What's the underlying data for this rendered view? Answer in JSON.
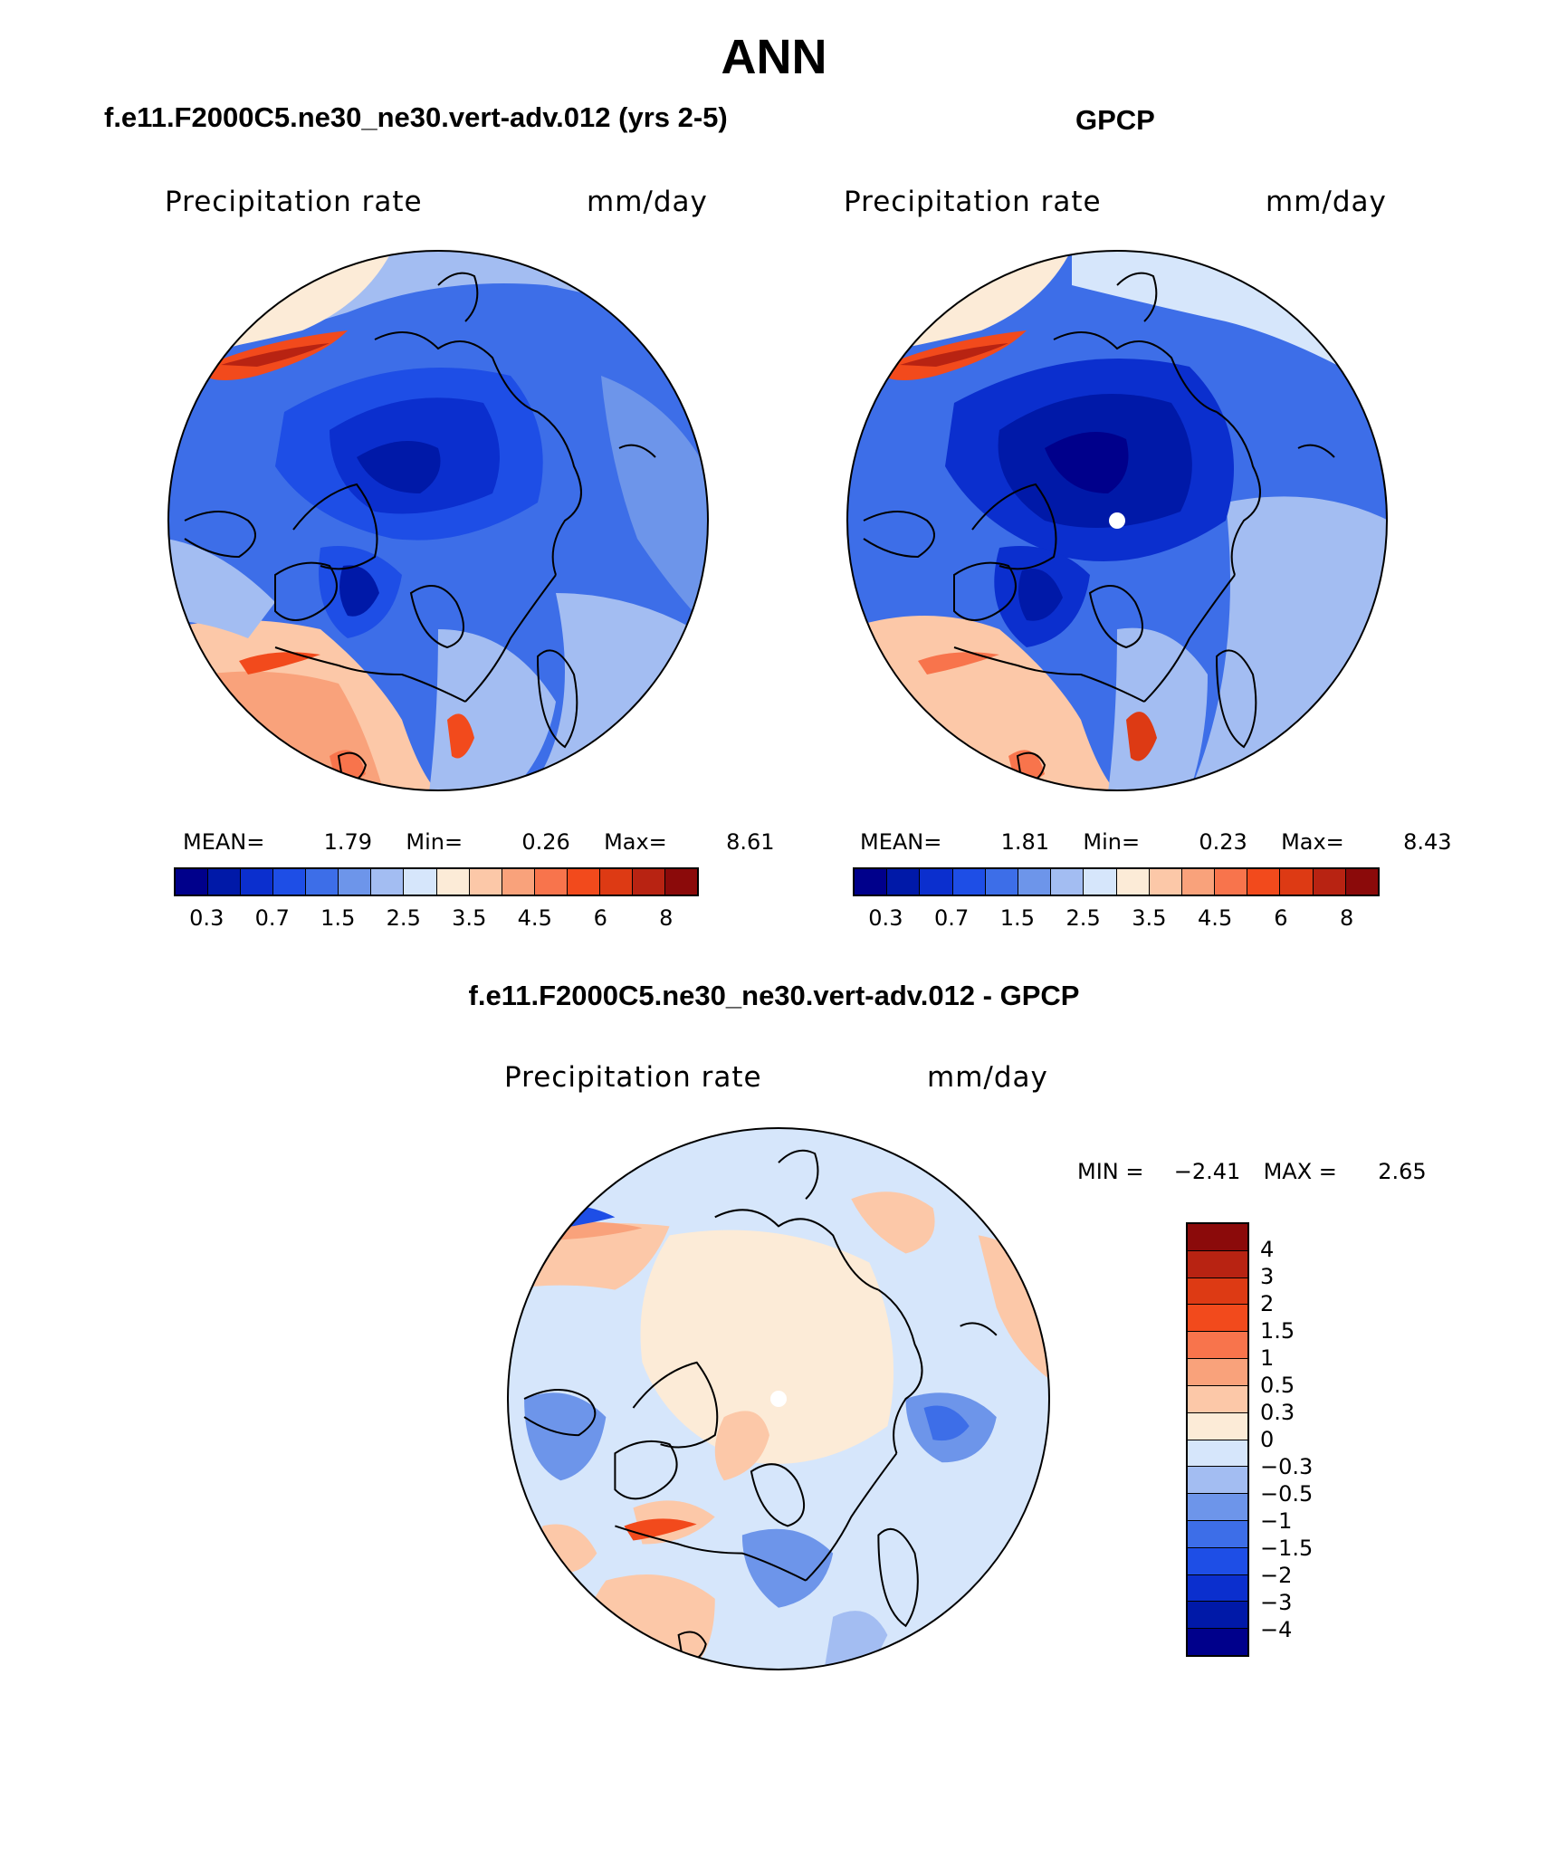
{
  "main_title": "ANN",
  "panels": [
    {
      "case_title": "f.e11.F2000C5.ne30_ne30.vert-adv.012 (yrs 2-5)",
      "variable": "Precipitation rate",
      "units": "mm/day",
      "mean_label": "MEAN=",
      "mean_value": "1.79",
      "min_label": "Min=",
      "min_value": "0.26",
      "max_label": "Max=",
      "max_value": "8.61"
    },
    {
      "case_title": "GPCP",
      "variable": "Precipitation rate",
      "units": "mm/day",
      "mean_label": "MEAN=",
      "mean_value": "1.81",
      "min_label": "Min=",
      "min_value": "0.23",
      "max_label": "Max=",
      "max_value": "8.43"
    }
  ],
  "diff_panel": {
    "case_title": "f.e11.F2000C5.ne30_ne30.vert-adv.012 - GPCP",
    "variable": "Precipitation rate",
    "units": "mm/day",
    "min_label": "MIN =",
    "min_value": "−2.41",
    "max_label": "MAX =",
    "max_value": "2.65"
  },
  "colorbar_abs": {
    "colors": [
      "#00008b",
      "#0019a8",
      "#0b2fce",
      "#1e4ee6",
      "#3d6ee8",
      "#6d95ea",
      "#a3bdf2",
      "#d6e6fb",
      "#fcebd7",
      "#fcc8a8",
      "#f9a27b",
      "#f8744c",
      "#f24a1c",
      "#dd3a14",
      "#b82312",
      "#8b0a0a"
    ],
    "labels": [
      "0.3",
      "0.7",
      "1.5",
      "2.5",
      "3.5",
      "4.5",
      "6",
      "8"
    ]
  },
  "colorbar_diff": {
    "colors": [
      "#8b0a0a",
      "#b82312",
      "#dd3a14",
      "#f24a1c",
      "#f8744c",
      "#f9a27b",
      "#fcc8a8",
      "#fcebd7",
      "#d6e6fb",
      "#a3bdf2",
      "#6d95ea",
      "#3d6ee8",
      "#1e4ee6",
      "#0b2fce",
      "#0019a8",
      "#00008b"
    ],
    "labels": [
      "4",
      "3",
      "2",
      "1.5",
      "1",
      "0.5",
      "0.3",
      "0",
      "−0.3",
      "−0.5",
      "−1",
      "−1.5",
      "−2",
      "−3",
      "−4"
    ]
  }
}
